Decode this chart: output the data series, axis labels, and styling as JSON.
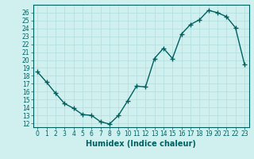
{
  "xlabel": "Humidex (Indice chaleur)",
  "x_values": [
    0,
    1,
    2,
    3,
    4,
    5,
    6,
    7,
    8,
    9,
    10,
    11,
    12,
    13,
    14,
    15,
    16,
    17,
    18,
    19,
    20,
    21,
    22,
    23
  ],
  "y_values": [
    18.5,
    17.2,
    15.8,
    14.5,
    13.9,
    13.1,
    13.0,
    12.2,
    11.9,
    13.0,
    14.8,
    16.7,
    16.6,
    20.2,
    21.5,
    20.2,
    23.3,
    24.5,
    25.1,
    26.3,
    26.0,
    25.5,
    24.1,
    19.5
  ],
  "line_color": "#006060",
  "marker": "+",
  "bg_color": "#d0f0f0",
  "grid_color": "#b0dede",
  "ylim": [
    11.5,
    27
  ],
  "xlim": [
    -0.5,
    23.5
  ],
  "yticks": [
    12,
    13,
    14,
    15,
    16,
    17,
    18,
    19,
    20,
    21,
    22,
    23,
    24,
    25,
    26
  ],
  "xticks": [
    0,
    1,
    2,
    3,
    4,
    5,
    6,
    7,
    8,
    9,
    10,
    11,
    12,
    13,
    14,
    15,
    16,
    17,
    18,
    19,
    20,
    21,
    22,
    23
  ],
  "tick_fontsize": 5.5,
  "xlabel_fontsize": 7.0,
  "linewidth": 1.0,
  "markersize": 4,
  "spine_color": "#006060"
}
